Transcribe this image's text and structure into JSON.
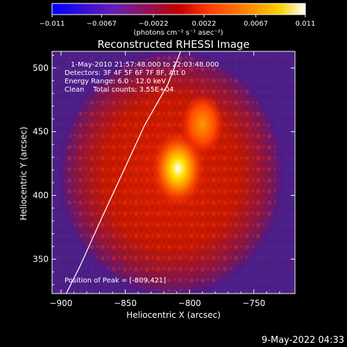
{
  "colorbar": {
    "min": -0.011,
    "max": 0.011,
    "tick_labels": [
      "-0.011",
      "-0.0067",
      "-0.0022",
      "0.0022",
      "0.0067",
      "0.011"
    ],
    "label": "(photons cm⁻² s⁻¹ asec⁻²)"
  },
  "title": "Reconstructed RHESSI Image",
  "annotations": {
    "time_range": "1-May-2010 21:57:48.000 to 22:03:48.000",
    "detectors": "Detectors: 3F 4F 5F 6F 7F 8F, Att 0",
    "energy": "Energy Range: 6.0 - 12.0 keV",
    "clean": "Clean    Total counts: 3.55E+04",
    "peak": "Position of Peak = [-809,421]"
  },
  "footer_timestamp": "9-May-2022 04:33",
  "colors": {
    "background": "#000000",
    "text": "#ffffff",
    "colormap": [
      "#0000ff",
      "#6a1fb0",
      "#c00000",
      "#ff3b00",
      "#ff8a00",
      "#ffd000",
      "#ffffff"
    ]
  },
  "chart_data": {
    "type": "heatmap",
    "title": "Reconstructed RHESSI Image",
    "xlabel": "Heliocentric X (arcsec)",
    "ylabel": "Heliocentric Y (arcsec)",
    "xlim": [
      -907,
      -718
    ],
    "ylim": [
      323,
      513
    ],
    "xticks": [
      -900,
      -850,
      -800,
      -750
    ],
    "yticks": [
      350,
      400,
      450,
      500
    ],
    "colormap": "RHESSI thermal (blue-purple-red-yellow-white)",
    "value_range": [
      -0.011,
      0.011
    ],
    "peak_position": [
      -809,
      421
    ],
    "peak_value": 0.011,
    "sources": [
      {
        "x": -809,
        "y": 421,
        "value": 0.011
      },
      {
        "x": -790,
        "y": 456,
        "value": 0.0055
      }
    ],
    "limb_curve": [
      [
        -896,
        323
      ],
      [
        -885,
        345
      ],
      [
        -868,
        383
      ],
      [
        -851,
        420
      ],
      [
        -835,
        455
      ],
      [
        -817,
        487
      ],
      [
        -807,
        513
      ]
    ]
  }
}
